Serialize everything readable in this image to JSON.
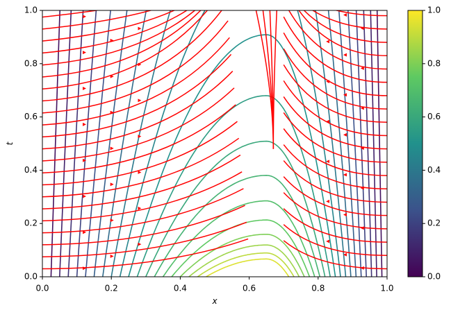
{
  "chart_data": {
    "type": "contour",
    "xlabel": "x",
    "ylabel": "t",
    "xlim": [
      0,
      1
    ],
    "ylim": [
      0,
      1
    ],
    "xticks": [
      {
        "value": 0,
        "label": "0.0"
      },
      {
        "value": 0.2,
        "label": "0.2"
      },
      {
        "value": 0.4,
        "label": "0.4"
      },
      {
        "value": 0.6,
        "label": "0.6"
      },
      {
        "value": 0.8,
        "label": "0.8"
      },
      {
        "value": 1,
        "label": "1.0"
      }
    ],
    "yticks": [
      {
        "value": 0,
        "label": "0.0"
      },
      {
        "value": 0.2,
        "label": "0.2"
      },
      {
        "value": 0.4,
        "label": "0.4"
      },
      {
        "value": 0.6,
        "label": "0.6"
      },
      {
        "value": 0.8,
        "label": "0.8"
      },
      {
        "value": 1,
        "label": "1.0"
      }
    ],
    "levels": [
      0.05,
      0.1,
      0.15,
      0.2,
      0.25,
      0.3,
      0.35,
      0.4,
      0.45,
      0.5,
      0.55,
      0.6,
      0.65,
      0.7,
      0.75,
      0.8,
      0.85,
      0.9,
      0.95
    ],
    "colormap": "viridis",
    "streamline_color": "#ff0000",
    "colorbar": {
      "lim": [
        0,
        1
      ],
      "ticks": [
        {
          "value": 0,
          "label": "0.0"
        },
        {
          "value": 0.2,
          "label": "0.2"
        },
        {
          "value": 0.4,
          "label": "0.4"
        },
        {
          "value": 0.6,
          "label": "0.6"
        },
        {
          "value": 0.8,
          "label": "0.8"
        },
        {
          "value": 1,
          "label": "1.0"
        }
      ]
    }
  }
}
